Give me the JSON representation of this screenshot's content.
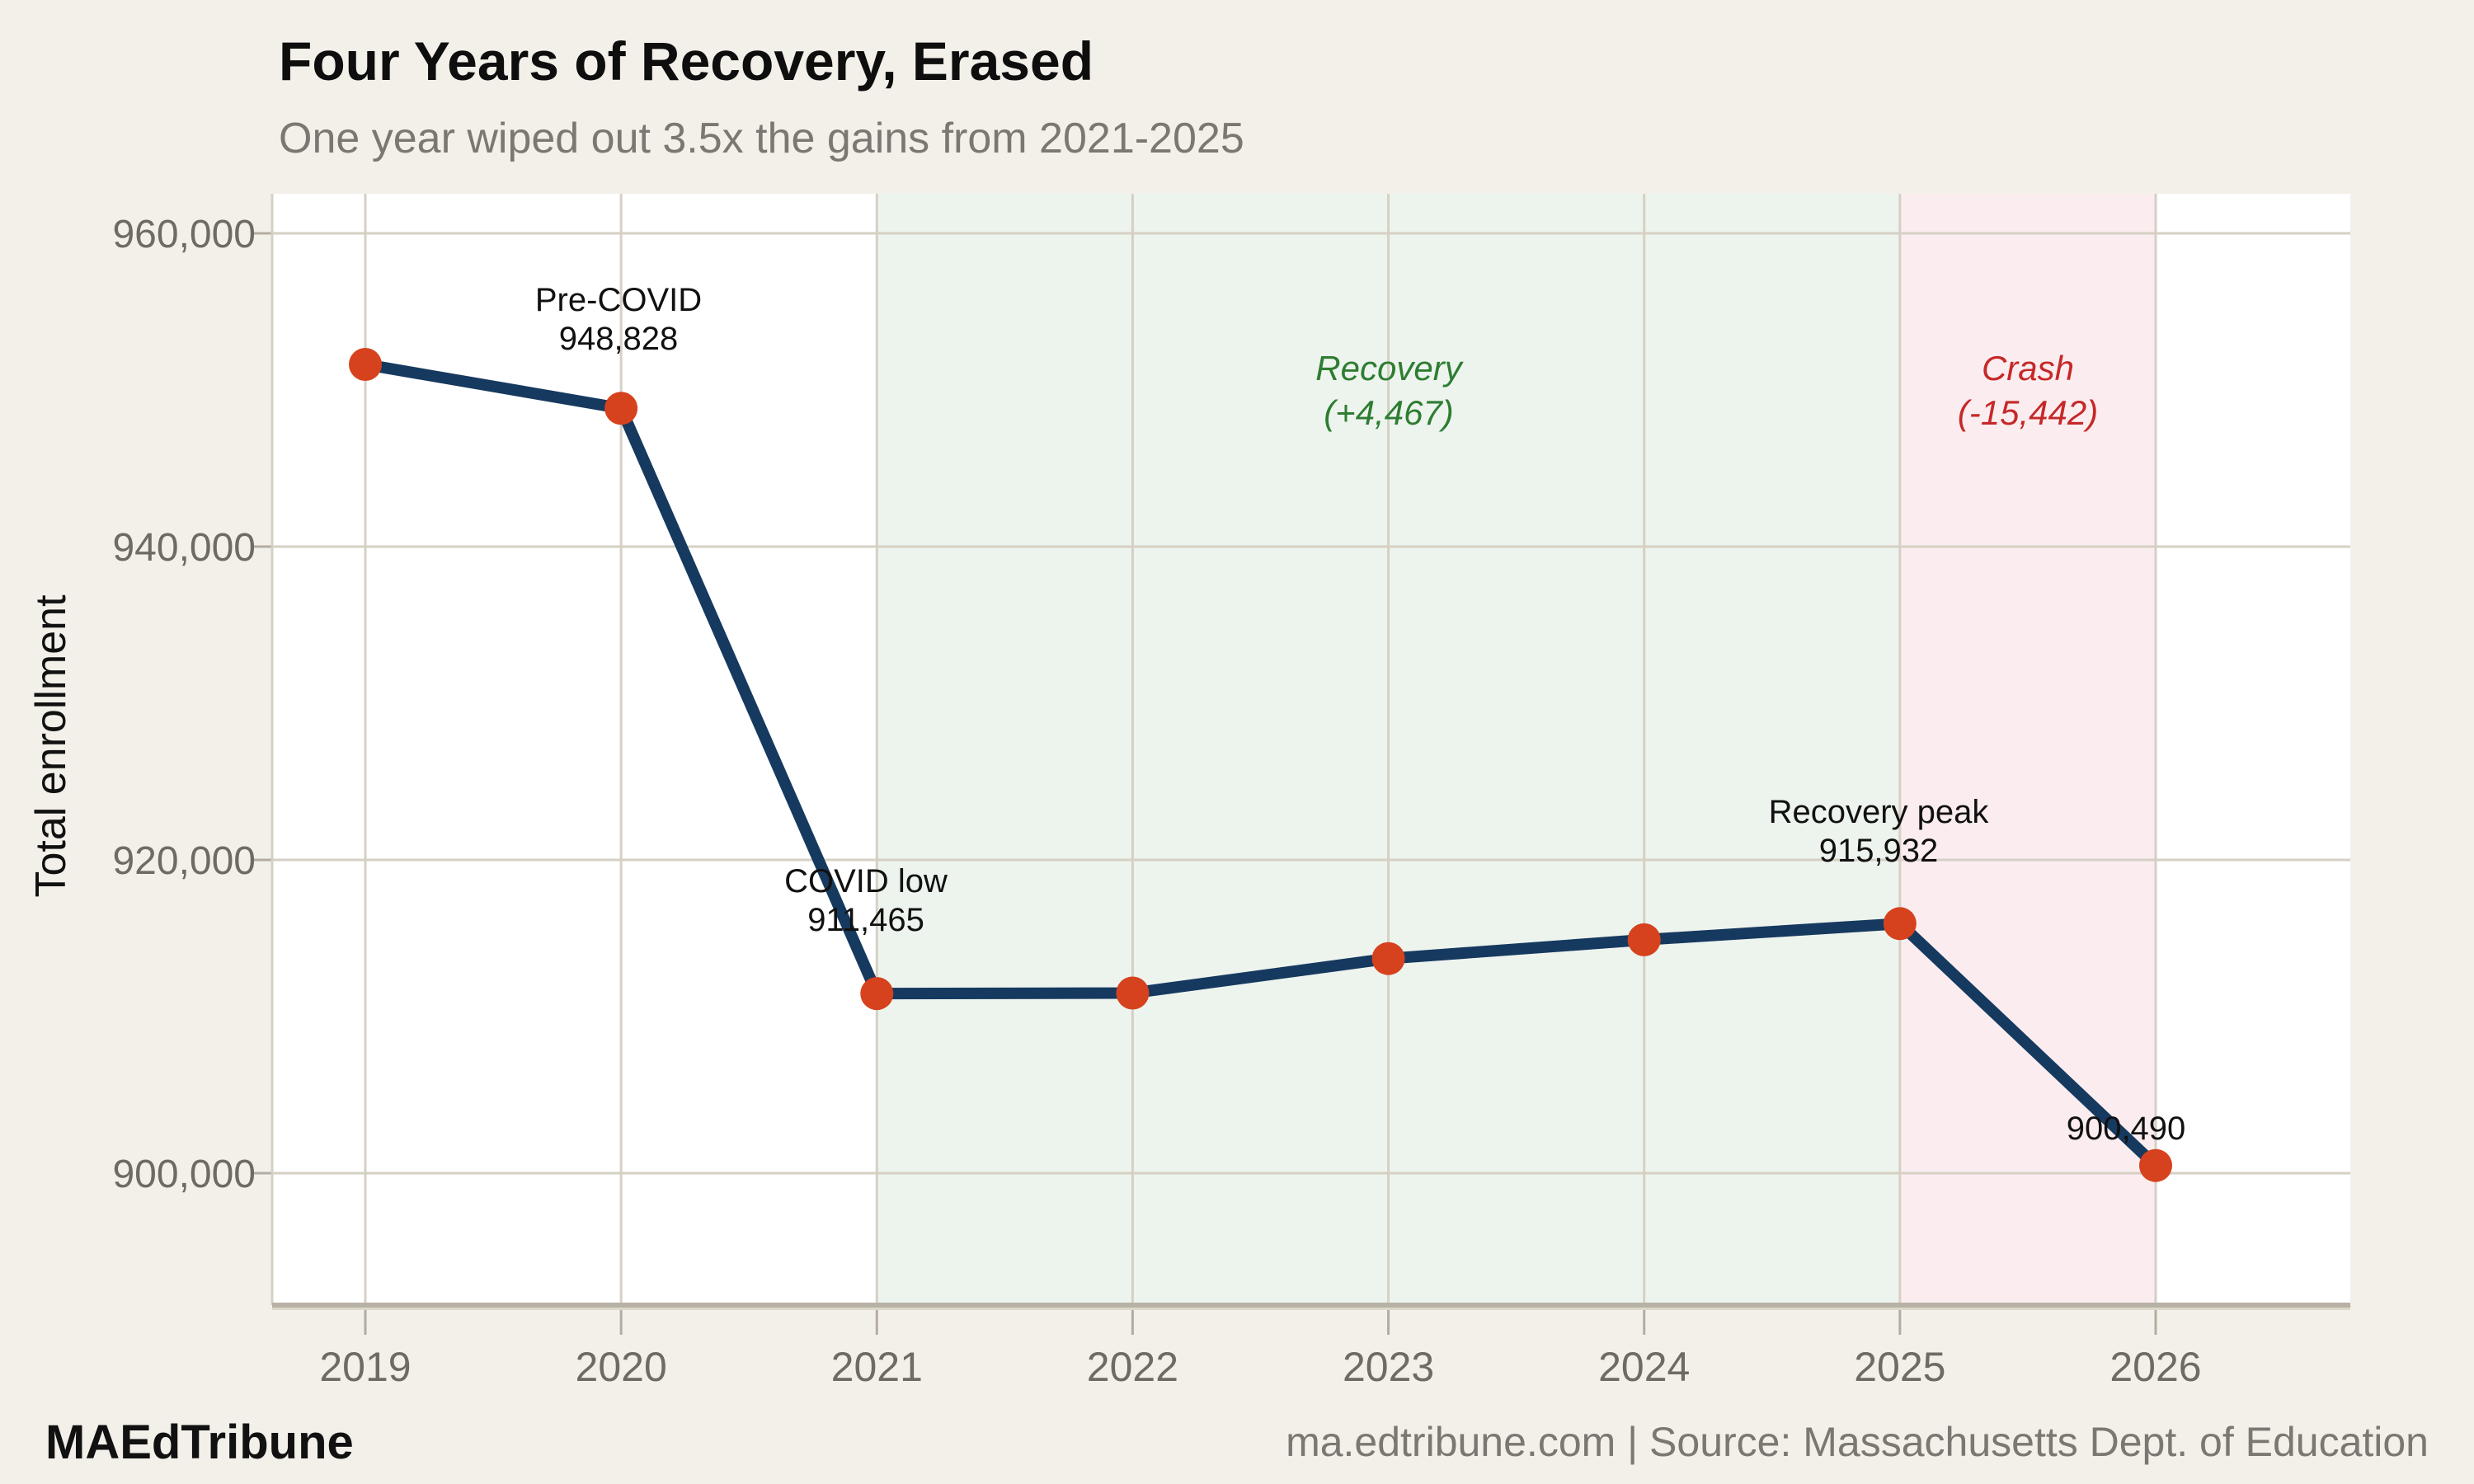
{
  "header": {
    "title": "Four Years of Recovery, Erased",
    "subtitle": "One year wiped out 3.5x the gains from 2021-2025"
  },
  "chart_data": {
    "type": "line",
    "title": "Four Years of Recovery, Erased",
    "subtitle": "One year wiped out 3.5x the gains from 2021-2025",
    "xlabel": "",
    "ylabel": "Total enrollment",
    "x": [
      2019,
      2020,
      2021,
      2022,
      2023,
      2024,
      2025,
      2026
    ],
    "x_tick_labels": [
      "2019",
      "2020",
      "2021",
      "2022",
      "2023",
      "2024",
      "2025",
      "2026"
    ],
    "series": [
      {
        "name": "Total enrollment",
        "values": [
          951631,
          948828,
          911465,
          911500,
          913700,
          914900,
          915932,
          900490
        ]
      }
    ],
    "labeled_points": {
      "2020": 948828,
      "2021": 911465,
      "2025": 915932,
      "2026": 900490
    },
    "ylim": [
      891600,
      962500
    ],
    "y_ticks": [
      900000,
      920000,
      940000,
      960000
    ],
    "y_tick_labels": [
      "900,000",
      "920,000",
      "940,000",
      "960,000"
    ],
    "grid": true,
    "legend": "none",
    "line_color": "#16395f",
    "marker_color": "#d5421d",
    "grid_color": "#d6d0c4",
    "bands": [
      {
        "name": "recovery-band",
        "from": 2021,
        "to": 2025,
        "color": "#edf4ee"
      },
      {
        "name": "crash-band",
        "from": 2025,
        "to": 2026,
        "color": "#fbedef"
      }
    ],
    "annotations": [
      {
        "id": "pre-covid",
        "lines": [
          "Pre-COVID",
          "948,828"
        ],
        "color": "#111111",
        "style": "normal"
      },
      {
        "id": "covid-low",
        "lines": [
          "COVID low",
          "911,465"
        ],
        "color": "#111111",
        "style": "normal"
      },
      {
        "id": "recovery-peak",
        "lines": [
          "Recovery peak",
          "915,932"
        ],
        "color": "#111111",
        "style": "normal"
      },
      {
        "id": "final-value",
        "lines": [
          "900,490"
        ],
        "color": "#111111",
        "style": "normal"
      },
      {
        "id": "recovery-label",
        "lines": [
          "Recovery",
          "(+4,467)"
        ],
        "color": "#2e7d32",
        "style": "italic"
      },
      {
        "id": "crash-label",
        "lines": [
          "Crash",
          "(-15,442)"
        ],
        "color": "#c62828",
        "style": "italic"
      }
    ]
  },
  "footer": {
    "brand": "MAEdTribune",
    "source": "ma.edtribune.com | Source: Massachusetts Dept. of Education"
  }
}
